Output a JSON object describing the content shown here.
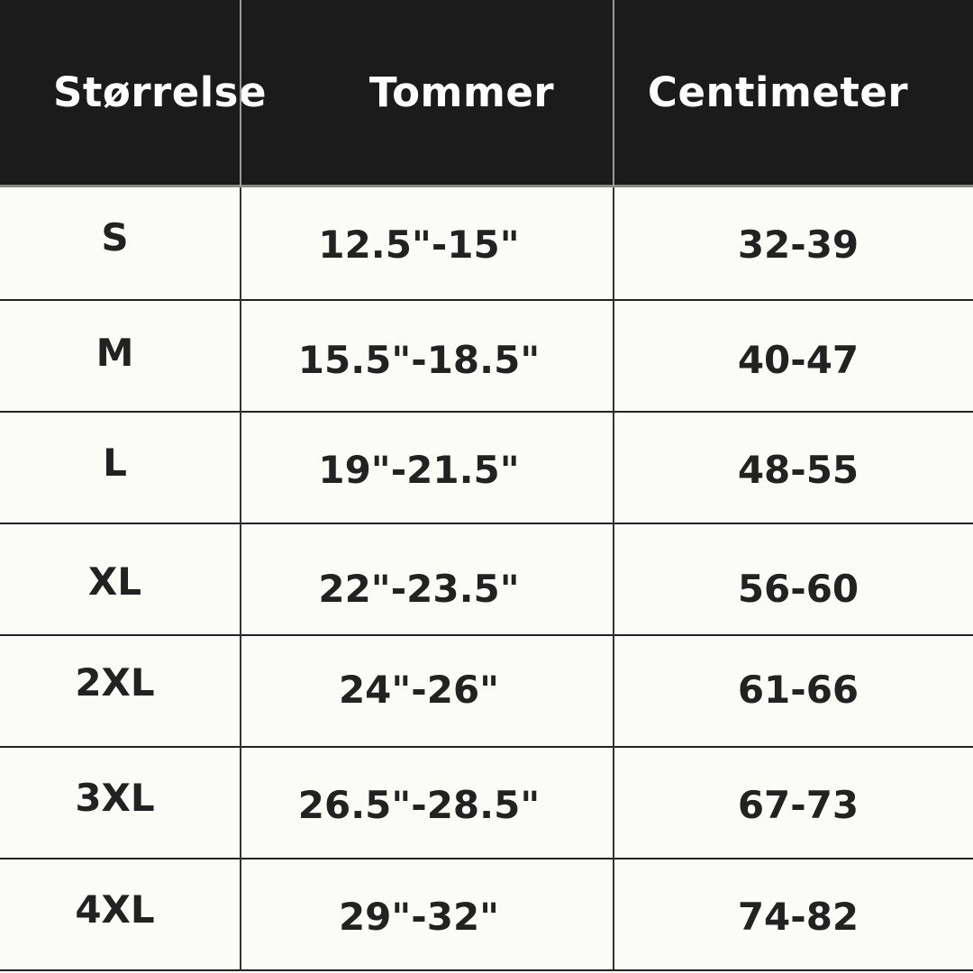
{
  "headers": [
    "Størrelse",
    "Tommer",
    "Centimeter"
  ],
  "rows": [
    [
      "S",
      "12.5\"-15\"",
      "32-39"
    ],
    [
      "M",
      "15.5\"-18.5\"",
      "40-47"
    ],
    [
      "L",
      "19\"-21.5\"",
      "48-55"
    ],
    [
      "XL",
      "22\"-23.5\"",
      "56-60"
    ],
    [
      "2XL",
      "24\"-26\"",
      "61-66"
    ],
    [
      "3XL",
      "26.5\"-28.5\"",
      "67-73"
    ],
    [
      "4XL",
      "29\"-32\"",
      "74-82"
    ]
  ],
  "colors": {
    "header_bg": "#1b1b1b",
    "header_text": "#ffffff",
    "body_bg": "#fbfbf7",
    "body_text": "#222222"
  }
}
